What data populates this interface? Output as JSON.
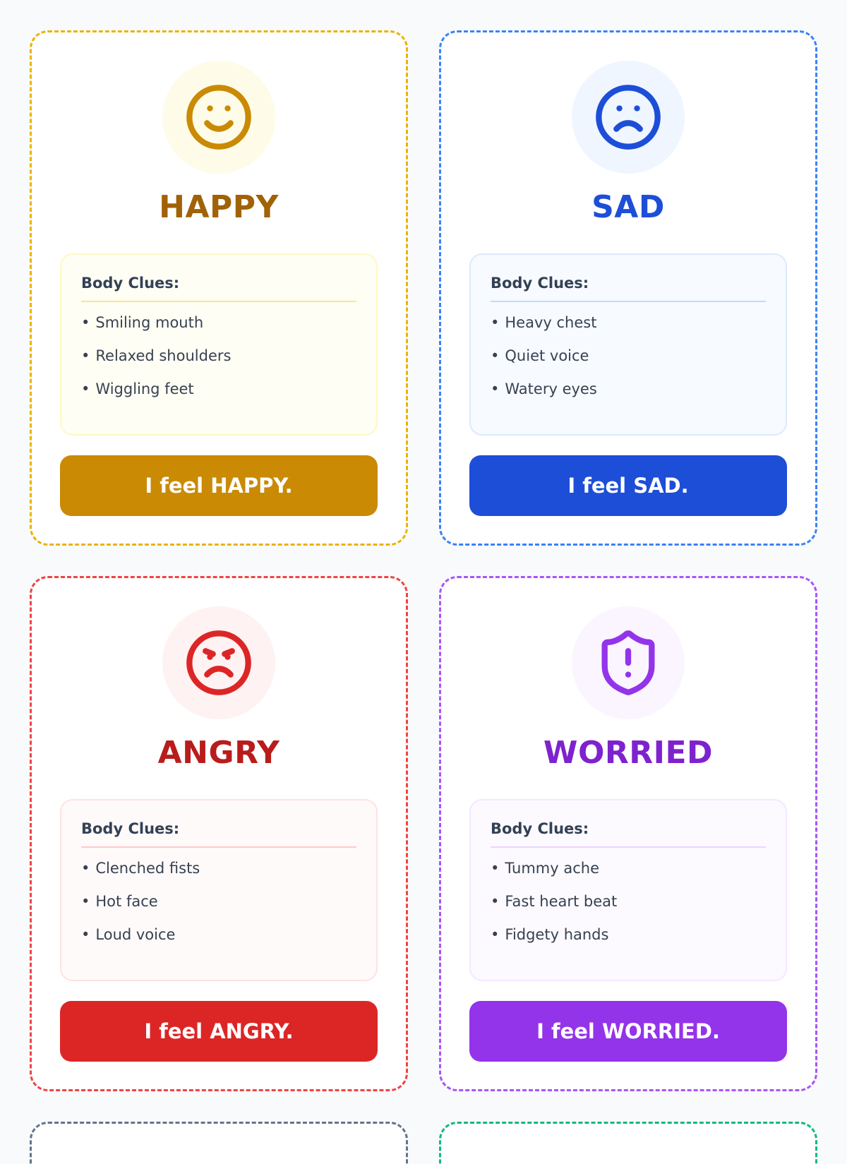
{
  "cards": [
    {
      "emotion": "HAPPY",
      "icon": "smile-icon",
      "clues_title": "Body Clues:",
      "clues": [
        "Smiling mouth",
        "Relaxed shoulders",
        "Wiggling feet"
      ],
      "button": "I feel HAPPY.",
      "colors": {
        "border": "#eab308",
        "title": "#a16207",
        "button": "#ca8a04",
        "icon": "#ca8a04"
      }
    },
    {
      "emotion": "SAD",
      "icon": "frown-icon",
      "clues_title": "Body Clues:",
      "clues": [
        "Heavy chest",
        "Quiet voice",
        "Watery eyes"
      ],
      "button": "I feel SAD.",
      "colors": {
        "border": "#3b82f6",
        "title": "#1d4ed8",
        "button": "#1d4ed8",
        "icon": "#1d4ed8"
      }
    },
    {
      "emotion": "ANGRY",
      "icon": "angry-face-icon",
      "clues_title": "Body Clues:",
      "clues": [
        "Clenched fists",
        "Hot face",
        "Loud voice"
      ],
      "button": "I feel ANGRY.",
      "colors": {
        "border": "#ef4444",
        "title": "#b91c1c",
        "button": "#dc2626",
        "icon": "#dc2626"
      }
    },
    {
      "emotion": "WORRIED",
      "icon": "shield-alert-icon",
      "clues_title": "Body Clues:",
      "clues": [
        "Tummy ache",
        "Fast heart beat",
        "Fidgety hands"
      ],
      "button": "I feel WORRIED.",
      "colors": {
        "border": "#a855f7",
        "title": "#7e22ce",
        "button": "#9333ea",
        "icon": "#9333ea"
      }
    }
  ],
  "partial_cards": [
    {
      "border": "#64748b"
    },
    {
      "border": "#10b981"
    }
  ]
}
